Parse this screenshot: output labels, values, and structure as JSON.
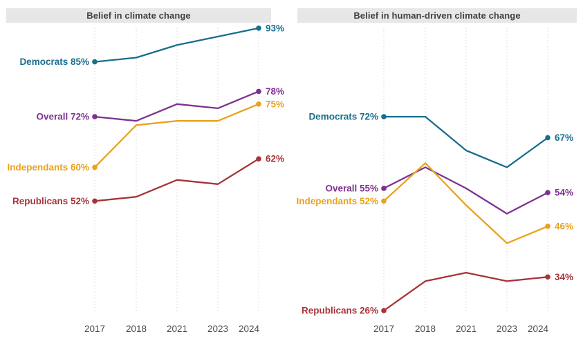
{
  "chart_data": [
    {
      "type": "line",
      "title": "Belief in climate change",
      "categories": [
        "2017",
        "2018",
        "2021",
        "2023",
        "2024"
      ],
      "xlabel": "",
      "ylabel": "",
      "ylim": [
        20,
        100
      ],
      "grid": "vertical-dotted",
      "legend_position": "inline-labels",
      "series": [
        {
          "name": "Democrats",
          "color": "#186e8c",
          "values": [
            85,
            86,
            89,
            91,
            93
          ],
          "start_label": "Democrats 85%",
          "end_label": "93%"
        },
        {
          "name": "Overall",
          "color": "#7d3190",
          "values": [
            72,
            71,
            75,
            74,
            78
          ],
          "start_label": "Overall 72%",
          "end_label": "78%"
        },
        {
          "name": "Independants",
          "color": "#eaa21b",
          "values": [
            60,
            70,
            71,
            71,
            75
          ],
          "start_label": "Independants 60%",
          "end_label": "75%"
        },
        {
          "name": "Republicans",
          "color": "#a83338",
          "values": [
            52,
            53,
            57,
            56,
            62
          ],
          "start_label": "Republicans 52%",
          "end_label": "62%"
        }
      ]
    },
    {
      "type": "line",
      "title": "Belief in human-driven climate change",
      "categories": [
        "2017",
        "2018",
        "2021",
        "2023",
        "2024"
      ],
      "xlabel": "",
      "ylabel": "",
      "ylim": [
        20,
        100
      ],
      "grid": "vertical-dotted",
      "legend_position": "inline-labels",
      "series": [
        {
          "name": "Democrats",
          "color": "#186e8c",
          "values": [
            72,
            72,
            64,
            60,
            67
          ],
          "start_label": "Democrats 72%",
          "end_label": "67%"
        },
        {
          "name": "Overall",
          "color": "#7d3190",
          "values": [
            55,
            60,
            55,
            49,
            54
          ],
          "start_label": "Overall 55%",
          "end_label": "54%"
        },
        {
          "name": "Independants",
          "color": "#eaa21b",
          "values": [
            52,
            61,
            51,
            42,
            46
          ],
          "start_label": "Independants 52%",
          "end_label": "46%"
        },
        {
          "name": "Republicans",
          "color": "#a83338",
          "values": [
            26,
            33,
            35,
            33,
            34
          ],
          "start_label": "Republicans 26%",
          "end_label": "34%"
        }
      ]
    }
  ],
  "colors": {
    "democrats": "#186e8c",
    "overall": "#7d3190",
    "independants": "#eaa21b",
    "republicans": "#a83338",
    "title_bar_bg": "#e7e7e8",
    "title_text": "#3f3f46",
    "gridline": "#d7d7d7",
    "axis_label": "#4b4b4b"
  }
}
